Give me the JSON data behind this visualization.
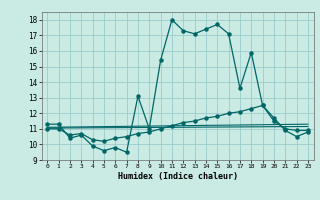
{
  "xlabel": "Humidex (Indice chaleur)",
  "ylabel": "",
  "xlim": [
    -0.5,
    23.5
  ],
  "ylim": [
    9,
    18.5
  ],
  "yticks": [
    9,
    10,
    11,
    12,
    13,
    14,
    15,
    16,
    17,
    18
  ],
  "xticks": [
    0,
    1,
    2,
    3,
    4,
    5,
    6,
    7,
    8,
    9,
    10,
    11,
    12,
    13,
    14,
    15,
    16,
    17,
    18,
    19,
    20,
    21,
    22,
    23
  ],
  "background_color": "#caeae4",
  "grid_color": "#99cccc",
  "line_color": "#006666",
  "line1_x": [
    0,
    1,
    2,
    3,
    4,
    5,
    6,
    7,
    8,
    9,
    10,
    11,
    12,
    13,
    14,
    15,
    16,
    17,
    18,
    19,
    20,
    21,
    22,
    23
  ],
  "line1_y": [
    11.3,
    11.3,
    10.4,
    10.6,
    9.9,
    9.6,
    9.8,
    9.5,
    13.1,
    11.0,
    15.4,
    18.0,
    17.3,
    17.1,
    17.4,
    17.7,
    17.1,
    13.6,
    15.9,
    12.5,
    11.7,
    10.9,
    10.5,
    10.8
  ],
  "line2_x": [
    0,
    1,
    2,
    3,
    4,
    5,
    6,
    7,
    8,
    9,
    10,
    11,
    12,
    13,
    14,
    15,
    16,
    17,
    18,
    19,
    20,
    21,
    22,
    23
  ],
  "line2_y": [
    11.0,
    11.0,
    10.6,
    10.7,
    10.3,
    10.2,
    10.4,
    10.5,
    10.7,
    10.8,
    11.0,
    11.2,
    11.4,
    11.5,
    11.7,
    11.8,
    12.0,
    12.1,
    12.3,
    12.5,
    11.5,
    11.0,
    10.9,
    10.9
  ],
  "line3_x": [
    0,
    23
  ],
  "line3_y": [
    11.05,
    11.15
  ],
  "line4_x": [
    0,
    23
  ],
  "line4_y": [
    11.1,
    11.3
  ]
}
